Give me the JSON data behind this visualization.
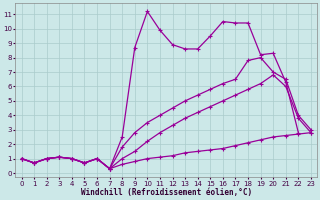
{
  "xlabel": "Windchill (Refroidissement éolien,°C)",
  "bg_color": "#cce8e8",
  "grid_color": "#aacccc",
  "line_color": "#990099",
  "xlim": [
    -0.5,
    23.5
  ],
  "ylim": [
    -0.3,
    11.8
  ],
  "xticks": [
    0,
    1,
    2,
    3,
    4,
    5,
    6,
    7,
    8,
    9,
    10,
    11,
    12,
    13,
    14,
    15,
    16,
    17,
    18,
    19,
    20,
    21,
    22,
    23
  ],
  "yticks": [
    0,
    1,
    2,
    3,
    4,
    5,
    6,
    7,
    8,
    9,
    10,
    11
  ],
  "line1_x": [
    0,
    1,
    2,
    3,
    4,
    5,
    6,
    7,
    8,
    9,
    10,
    11,
    12,
    13,
    14,
    15,
    16,
    17,
    18,
    19,
    20,
    21,
    22
  ],
  "line1_y": [
    1.0,
    0.7,
    1.0,
    1.1,
    1.0,
    0.7,
    1.0,
    0.3,
    2.5,
    8.7,
    11.2,
    9.9,
    8.9,
    8.6,
    8.6,
    9.5,
    10.5,
    10.4,
    10.4,
    8.2,
    8.3,
    6.3,
    2.8
  ],
  "line2_x": [
    0,
    1,
    2,
    3,
    4,
    5,
    6,
    7,
    8,
    9,
    10,
    11,
    12,
    13,
    14,
    15,
    16,
    17,
    18,
    19,
    20,
    21,
    22,
    23
  ],
  "line2_y": [
    1.0,
    0.7,
    1.0,
    1.1,
    1.0,
    0.7,
    1.0,
    0.3,
    1.8,
    2.8,
    3.5,
    4.0,
    4.5,
    5.0,
    5.4,
    5.8,
    6.2,
    6.5,
    7.8,
    8.0,
    7.0,
    6.5,
    4.0,
    3.0
  ],
  "line3_x": [
    0,
    1,
    2,
    3,
    4,
    5,
    6,
    7,
    8,
    9,
    10,
    11,
    12,
    13,
    14,
    15,
    16,
    17,
    18,
    19,
    20,
    21,
    22,
    23
  ],
  "line3_y": [
    1.0,
    0.7,
    1.0,
    1.1,
    1.0,
    0.7,
    1.0,
    0.3,
    1.0,
    1.5,
    2.2,
    2.8,
    3.3,
    3.8,
    4.2,
    4.6,
    5.0,
    5.4,
    5.8,
    6.2,
    6.8,
    6.0,
    3.8,
    2.8
  ],
  "line4_x": [
    0,
    1,
    2,
    3,
    4,
    5,
    6,
    7,
    8,
    9,
    10,
    11,
    12,
    13,
    14,
    15,
    16,
    17,
    18,
    19,
    20,
    21,
    22,
    23
  ],
  "line4_y": [
    1.0,
    0.7,
    1.0,
    1.1,
    1.0,
    0.7,
    1.0,
    0.3,
    0.6,
    0.8,
    1.0,
    1.1,
    1.2,
    1.4,
    1.5,
    1.6,
    1.7,
    1.9,
    2.1,
    2.3,
    2.5,
    2.6,
    2.7,
    2.8
  ],
  "markersize": 2.5,
  "linewidth": 0.9,
  "axis_fontsize": 5.5,
  "tick_fontsize": 5.0
}
